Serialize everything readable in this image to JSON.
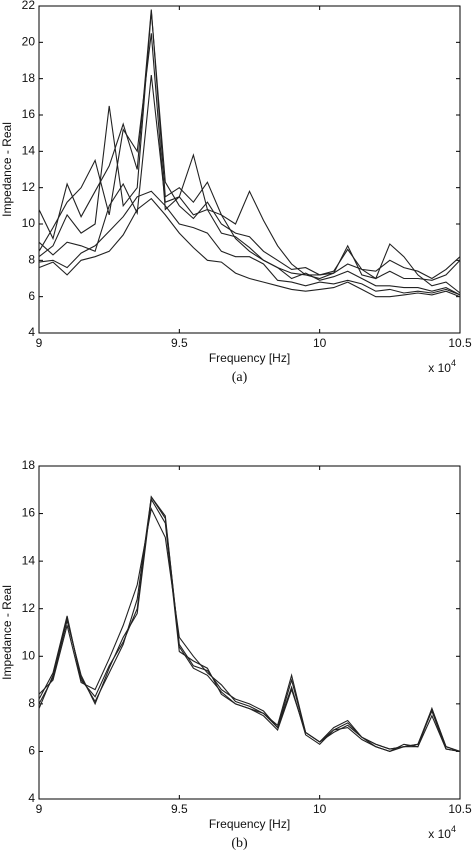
{
  "chart_data": [
    {
      "type": "line",
      "x_label": "Frequency [Hz]",
      "y_label": "Impedance - Real",
      "caption": "(a)",
      "x_multiplier": "x 10",
      "x_multiplier_exponent": "4",
      "x": [
        9,
        9.05,
        9.1,
        9.15,
        9.2,
        9.25,
        9.3,
        9.35,
        9.4,
        9.45,
        9.5,
        9.55,
        9.6,
        9.65,
        9.7,
        9.75,
        9.8,
        9.85,
        9.9,
        9.95,
        10,
        10.05,
        10.1,
        10.15,
        10.2,
        10.25,
        10.3,
        10.35,
        10.4,
        10.45,
        10.5
      ],
      "xlim": [
        9,
        10.5
      ],
      "xticks": [
        9,
        9.5,
        10,
        10.5
      ],
      "ylim": [
        4,
        22
      ],
      "yticks": [
        4,
        6,
        8,
        10,
        12,
        14,
        16,
        18,
        20,
        22
      ],
      "series": [
        {
          "color": "#222222",
          "values": [
            10.8,
            9.2,
            12.2,
            10.4,
            11.8,
            13.2,
            15.5,
            13.0,
            21.8,
            11.5,
            12.0,
            11.2,
            12.3,
            10.5,
            10.0,
            11.8,
            10.2,
            8.8,
            7.8,
            7.2,
            7.0,
            7.3,
            7.8,
            7.5,
            7.4,
            8.0,
            7.6,
            7.4,
            7.0,
            7.5,
            8.2
          ]
        },
        {
          "color": "#222222",
          "values": [
            8.5,
            9.8,
            11.2,
            12.0,
            13.5,
            10.5,
            15.2,
            14.0,
            20.5,
            10.8,
            11.5,
            13.8,
            10.8,
            10.5,
            9.2,
            8.5,
            8.0,
            7.6,
            7.3,
            7.2,
            7.2,
            7.4,
            8.6,
            7.5,
            7.0,
            8.9,
            8.2,
            7.2,
            6.6,
            6.8,
            6.2
          ]
        },
        {
          "color": "#222222",
          "values": [
            9.0,
            8.3,
            9.0,
            8.8,
            8.5,
            11.0,
            12.2,
            10.6,
            18.2,
            11.2,
            11.5,
            10.5,
            10.8,
            9.5,
            9.3,
            8.7,
            8.0,
            7.6,
            7.0,
            7.3,
            6.9,
            7.1,
            7.4,
            7.0,
            6.6,
            6.6,
            6.5,
            6.5,
            6.3,
            6.5,
            6.1
          ]
        },
        {
          "color": "#222222",
          "values": [
            7.9,
            8.0,
            7.6,
            8.4,
            8.8,
            9.6,
            10.4,
            11.5,
            11.8,
            11.0,
            10.0,
            9.8,
            9.5,
            8.5,
            8.2,
            8.2,
            7.8,
            6.9,
            6.8,
            6.6,
            6.8,
            6.7,
            6.9,
            6.7,
            6.3,
            6.4,
            6.2,
            6.3,
            6.2,
            6.4,
            6.1
          ]
        },
        {
          "color": "#222222",
          "values": [
            7.6,
            7.9,
            7.2,
            8.0,
            8.2,
            8.5,
            9.4,
            10.8,
            11.4,
            10.5,
            9.5,
            8.7,
            8.0,
            7.9,
            7.3,
            7.0,
            6.8,
            6.6,
            6.4,
            6.3,
            6.4,
            6.5,
            6.8,
            6.4,
            6.0,
            6.0,
            6.1,
            6.2,
            6.1,
            6.3,
            6.0
          ]
        },
        {
          "color": "#222222",
          "values": [
            8.2,
            8.8,
            10.5,
            9.5,
            10.0,
            16.5,
            11.0,
            12.0,
            21.7,
            12.3,
            11.0,
            10.3,
            11.2,
            10.0,
            9.5,
            9.3,
            8.5,
            8.0,
            7.5,
            7.6,
            7.2,
            7.3,
            8.8,
            7.2,
            7.0,
            7.4,
            7.0,
            7.0,
            6.9,
            7.2,
            8.0
          ]
        }
      ]
    },
    {
      "type": "line",
      "x_label": "Frequency [Hz]",
      "y_label": "Impedance - Real",
      "caption": "(b)",
      "x_multiplier": "x 10",
      "x_multiplier_exponent": "4",
      "x": [
        9,
        9.05,
        9.1,
        9.15,
        9.2,
        9.25,
        9.3,
        9.35,
        9.4,
        9.45,
        9.5,
        9.55,
        9.6,
        9.65,
        9.7,
        9.75,
        9.8,
        9.85,
        9.9,
        9.95,
        10,
        10.05,
        10.1,
        10.15,
        10.2,
        10.25,
        10.3,
        10.35,
        10.4,
        10.45,
        10.5
      ],
      "xlim": [
        9,
        10.5
      ],
      "xticks": [
        9,
        9.5,
        10,
        10.5
      ],
      "ylim": [
        4,
        18
      ],
      "yticks": [
        4,
        6,
        8,
        10,
        12,
        14,
        16,
        18
      ],
      "series": [
        {
          "color": "#222222",
          "values": [
            8.2,
            9.3,
            11.7,
            9.0,
            8.3,
            9.6,
            10.6,
            12.0,
            16.7,
            15.8,
            10.5,
            9.6,
            9.4,
            8.6,
            8.2,
            8.0,
            7.7,
            7.0,
            9.0,
            6.8,
            6.4,
            6.9,
            7.2,
            6.6,
            6.3,
            6.1,
            6.2,
            6.3,
            7.8,
            6.2,
            6.0
          ]
        },
        {
          "color": "#222222",
          "values": [
            8.0,
            9.1,
            11.5,
            9.2,
            8.0,
            9.5,
            10.8,
            11.8,
            16.6,
            15.6,
            10.2,
            9.8,
            9.5,
            8.4,
            8.0,
            7.8,
            7.6,
            7.0,
            8.7,
            6.7,
            6.3,
            6.9,
            7.0,
            6.5,
            6.2,
            6.0,
            6.3,
            6.2,
            7.5,
            6.1,
            6.0
          ]
        },
        {
          "color": "#222222",
          "values": [
            8.4,
            9.0,
            11.3,
            8.9,
            8.6,
            9.9,
            11.3,
            13.0,
            16.2,
            15.0,
            10.8,
            10.0,
            9.3,
            8.8,
            8.1,
            7.9,
            7.6,
            7.1,
            9.2,
            6.8,
            6.4,
            7.0,
            7.3,
            6.6,
            6.3,
            6.1,
            6.2,
            6.2,
            7.8,
            6.2,
            6.0
          ]
        },
        {
          "color": "#222222",
          "values": [
            7.8,
            9.2,
            11.6,
            9.1,
            8.1,
            9.3,
            10.5,
            12.4,
            16.7,
            15.9,
            10.4,
            9.5,
            9.2,
            8.5,
            8.0,
            7.8,
            7.5,
            6.9,
            8.6,
            6.8,
            6.4,
            6.8,
            7.1,
            6.6,
            6.2,
            6.0,
            6.2,
            6.3,
            7.7,
            6.1,
            6.0
          ]
        }
      ]
    }
  ]
}
